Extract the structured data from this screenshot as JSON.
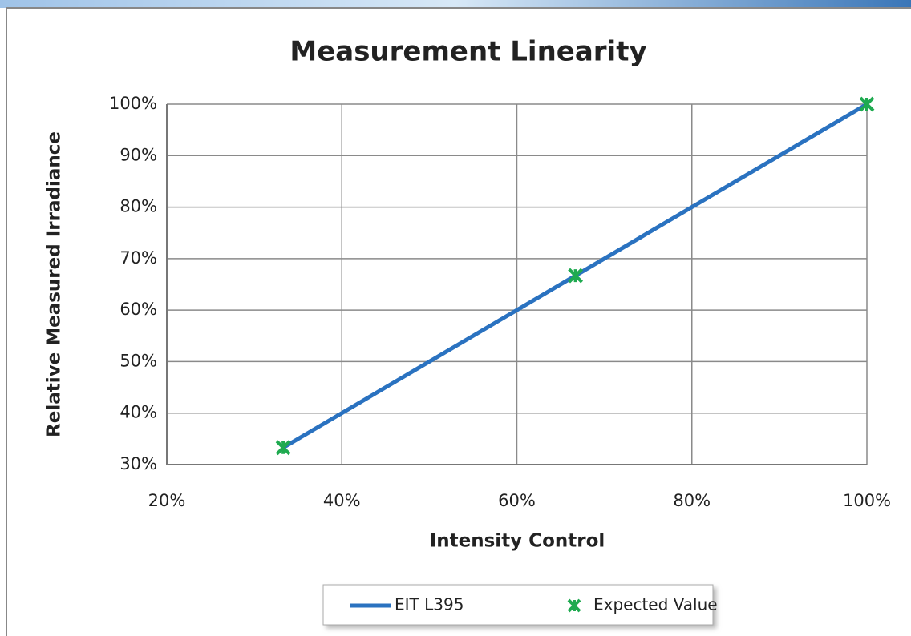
{
  "chart_data": {
    "type": "line",
    "title": "Measurement Linearity",
    "xlabel": "Intensity Control",
    "ylabel": "Relative Measured Irradiance",
    "xlim": [
      20,
      100
    ],
    "ylim": [
      30,
      100
    ],
    "xticks": [
      {
        "value": 20,
        "label": "20%"
      },
      {
        "value": 40,
        "label": "40%"
      },
      {
        "value": 60,
        "label": "60%"
      },
      {
        "value": 80,
        "label": "80%"
      },
      {
        "value": 100,
        "label": "100%"
      }
    ],
    "yticks": [
      {
        "value": 30,
        "label": "30%"
      },
      {
        "value": 40,
        "label": "40%"
      },
      {
        "value": 50,
        "label": "50%"
      },
      {
        "value": 60,
        "label": "60%"
      },
      {
        "value": 70,
        "label": "70%"
      },
      {
        "value": 80,
        "label": "80%"
      },
      {
        "value": 90,
        "label": "90%"
      },
      {
        "value": 100,
        "label": "100%"
      }
    ],
    "grid": true,
    "legend": "bottom",
    "series": [
      {
        "name": "EIT L395",
        "type": "line",
        "color": "#2a72c0",
        "x": [
          33.3,
          66.7,
          100
        ],
        "values": [
          33.3,
          66.7,
          100
        ]
      },
      {
        "name": "Expected Value",
        "type": "scatter",
        "color": "#1faa50",
        "x": [
          33.3,
          66.7,
          100
        ],
        "values": [
          33.3,
          66.7,
          100
        ]
      }
    ]
  }
}
